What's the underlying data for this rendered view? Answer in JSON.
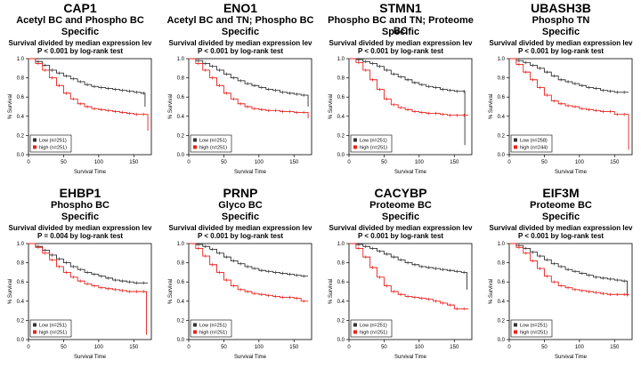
{
  "chart_data": [
    {
      "type": "line",
      "gene": "CAP1",
      "subtitle": [
        "Acetyl BC and Phospho BC",
        "Specific"
      ],
      "title": "Survival divided by median expression lev",
      "pvalue_text": "P < 0.001 by log-rank test",
      "xlabel": "Survival Time",
      "ylabel": "% Survival",
      "xlim": [
        0,
        175
      ],
      "ylim": [
        0,
        1
      ],
      "xticks": [
        "0",
        "50",
        "100",
        "150"
      ],
      "yticks": [
        "0.0",
        "0.2",
        "0.4",
        "0.6",
        "0.8",
        "1.0"
      ],
      "legend_position": "bottom-left",
      "series": [
        {
          "name": "Low (n=251)",
          "color": "#333333",
          "marker": "square",
          "x": [
            0,
            10,
            20,
            30,
            40,
            50,
            60,
            70,
            80,
            90,
            100,
            110,
            120,
            130,
            140,
            150,
            160,
            166
          ],
          "y": [
            1.0,
            0.97,
            0.93,
            0.88,
            0.85,
            0.82,
            0.79,
            0.76,
            0.73,
            0.71,
            0.7,
            0.69,
            0.68,
            0.67,
            0.66,
            0.65,
            0.64,
            0.5
          ]
        },
        {
          "name": "high (n=251)",
          "color": "#e8211e",
          "marker": "square",
          "x": [
            0,
            10,
            20,
            30,
            40,
            50,
            60,
            70,
            80,
            90,
            100,
            110,
            120,
            130,
            140,
            150,
            160,
            170
          ],
          "y": [
            1.0,
            0.95,
            0.88,
            0.8,
            0.72,
            0.64,
            0.58,
            0.53,
            0.5,
            0.48,
            0.47,
            0.46,
            0.45,
            0.44,
            0.43,
            0.42,
            0.42,
            0.25
          ]
        }
      ]
    },
    {
      "type": "line",
      "gene": "ENO1",
      "subtitle": [
        "Acetyl BC and TN; Phospho BC",
        "Specific"
      ],
      "title": "Survival divided by median expression lev",
      "pvalue_text": "P < 0.001 by log-rank test",
      "xlabel": "Survival Time",
      "ylabel": "% Survival",
      "xlim": [
        0,
        175
      ],
      "ylim": [
        0,
        1
      ],
      "xticks": [
        "0",
        "50",
        "100",
        "150"
      ],
      "yticks": [
        "0.0",
        "0.2",
        "0.4",
        "0.6",
        "0.8",
        "1.0"
      ],
      "legend_position": "bottom-left",
      "series": [
        {
          "name": "Low (n=251)",
          "color": "#333333",
          "marker": "square",
          "x": [
            0,
            10,
            20,
            30,
            40,
            50,
            60,
            70,
            80,
            90,
            100,
            110,
            120,
            130,
            140,
            150,
            160,
            170
          ],
          "y": [
            1.0,
            0.98,
            0.95,
            0.92,
            0.88,
            0.84,
            0.8,
            0.77,
            0.74,
            0.72,
            0.7,
            0.68,
            0.67,
            0.65,
            0.64,
            0.63,
            0.62,
            0.5
          ]
        },
        {
          "name": "high (n=251)",
          "color": "#e8211e",
          "marker": "square",
          "x": [
            0,
            10,
            20,
            30,
            40,
            50,
            60,
            70,
            80,
            90,
            100,
            110,
            120,
            130,
            140,
            150,
            160,
            170
          ],
          "y": [
            1.0,
            0.95,
            0.88,
            0.8,
            0.72,
            0.64,
            0.58,
            0.53,
            0.5,
            0.48,
            0.47,
            0.46,
            0.46,
            0.45,
            0.45,
            0.44,
            0.44,
            0.38
          ]
        }
      ]
    },
    {
      "type": "line",
      "gene": "STMN1",
      "subtitle": [
        "Phospho BC and TN; Proteome BC",
        "Specific"
      ],
      "title": "Survival divided by median expression lev",
      "pvalue_text": "P < 0.001 by log-rank test",
      "xlabel": "Survival Time",
      "ylabel": "% Survival",
      "xlim": [
        0,
        175
      ],
      "ylim": [
        0,
        1
      ],
      "xticks": [
        "0",
        "50",
        "100",
        "150"
      ],
      "yticks": [
        "0.0",
        "0.2",
        "0.4",
        "0.6",
        "0.8",
        "1.0"
      ],
      "legend_position": "bottom-left",
      "series": [
        {
          "name": "Low (n=251)",
          "color": "#333333",
          "marker": "square",
          "x": [
            0,
            10,
            20,
            30,
            40,
            50,
            60,
            70,
            80,
            90,
            100,
            110,
            120,
            130,
            140,
            150,
            160,
            165
          ],
          "y": [
            1.0,
            0.99,
            0.97,
            0.95,
            0.92,
            0.88,
            0.84,
            0.81,
            0.78,
            0.75,
            0.73,
            0.71,
            0.7,
            0.68,
            0.67,
            0.66,
            0.66,
            0.1
          ]
        },
        {
          "name": "high (n=251)",
          "color": "#e8211e",
          "marker": "square",
          "x": [
            0,
            10,
            20,
            30,
            40,
            50,
            60,
            70,
            80,
            90,
            100,
            110,
            120,
            130,
            140,
            150,
            160,
            170
          ],
          "y": [
            1.0,
            0.96,
            0.88,
            0.78,
            0.68,
            0.58,
            0.52,
            0.49,
            0.47,
            0.45,
            0.44,
            0.43,
            0.43,
            0.42,
            0.41,
            0.41,
            0.41,
            0.41
          ]
        }
      ]
    },
    {
      "type": "line",
      "gene": "UBASH3B",
      "subtitle": [
        "Phospho TN",
        "Specific"
      ],
      "title": "Survival divided by median expression lev",
      "pvalue_text": "P < 0.001 by log-rank test",
      "xlabel": "Survival Time",
      "ylabel": "% Survival",
      "xlim": [
        0,
        175
      ],
      "ylim": [
        0,
        1
      ],
      "xticks": [
        "0",
        "50",
        "100",
        "150"
      ],
      "yticks": [
        "0.0",
        "0.2",
        "0.4",
        "0.6",
        "0.8",
        "1.0"
      ],
      "legend_position": "bottom-left",
      "series": [
        {
          "name": "Low (n=258)",
          "color": "#333333",
          "marker": "square",
          "x": [
            0,
            10,
            20,
            30,
            40,
            50,
            60,
            70,
            80,
            90,
            100,
            110,
            120,
            130,
            140,
            150,
            160,
            170
          ],
          "y": [
            1.0,
            0.98,
            0.96,
            0.93,
            0.9,
            0.86,
            0.82,
            0.78,
            0.76,
            0.74,
            0.72,
            0.7,
            0.69,
            0.67,
            0.66,
            0.65,
            0.65,
            0.65
          ]
        },
        {
          "name": "high (n=244)",
          "color": "#e8211e",
          "marker": "square",
          "x": [
            0,
            10,
            20,
            30,
            40,
            50,
            60,
            70,
            80,
            90,
            100,
            110,
            120,
            130,
            140,
            150,
            160,
            170
          ],
          "y": [
            1.0,
            0.94,
            0.86,
            0.78,
            0.7,
            0.62,
            0.56,
            0.53,
            0.51,
            0.5,
            0.48,
            0.47,
            0.46,
            0.45,
            0.45,
            0.42,
            0.42,
            0.05
          ]
        }
      ]
    },
    {
      "type": "line",
      "gene": "EHBP1",
      "subtitle": [
        "Phospho BC",
        "Specific"
      ],
      "title": "Survival divided by median expression lev",
      "pvalue_text": "P = 0.004 by log-rank test",
      "xlabel": "Survival Time",
      "ylabel": "% Survival",
      "xlim": [
        0,
        175
      ],
      "ylim": [
        0,
        1
      ],
      "xticks": [
        "0",
        "50",
        "100",
        "150"
      ],
      "yticks": [
        "0.0",
        "0.2",
        "0.4",
        "0.6",
        "0.8",
        "1.0"
      ],
      "legend_position": "bottom-left",
      "series": [
        {
          "name": "Low (n=251)",
          "color": "#333333",
          "marker": "square",
          "x": [
            0,
            10,
            20,
            30,
            40,
            50,
            60,
            70,
            80,
            90,
            100,
            110,
            120,
            130,
            140,
            150,
            160,
            170
          ],
          "y": [
            1.0,
            0.97,
            0.93,
            0.88,
            0.84,
            0.8,
            0.76,
            0.73,
            0.7,
            0.68,
            0.66,
            0.64,
            0.62,
            0.61,
            0.6,
            0.59,
            0.59,
            0.59
          ]
        },
        {
          "name": "high (n=251)",
          "color": "#e8211e",
          "marker": "square",
          "x": [
            0,
            10,
            20,
            30,
            40,
            50,
            60,
            70,
            80,
            90,
            100,
            110,
            120,
            130,
            140,
            150,
            160,
            168
          ],
          "y": [
            1.0,
            0.96,
            0.9,
            0.83,
            0.76,
            0.7,
            0.65,
            0.61,
            0.58,
            0.56,
            0.54,
            0.53,
            0.52,
            0.51,
            0.5,
            0.5,
            0.5,
            0.05
          ]
        }
      ]
    },
    {
      "type": "line",
      "gene": "PRNP",
      "subtitle": [
        "Glyco BC",
        "Specific"
      ],
      "title": "Survival divided by median expression lev",
      "pvalue_text": "P < 0.001 by log-rank test",
      "xlabel": "Survival Time",
      "ylabel": "% Survival",
      "xlim": [
        0,
        175
      ],
      "ylim": [
        0,
        1
      ],
      "xticks": [
        "0",
        "50",
        "100",
        "150"
      ],
      "yticks": [
        "0.0",
        "0.2",
        "0.4",
        "0.6",
        "0.8",
        "1.0"
      ],
      "legend_position": "bottom-left",
      "series": [
        {
          "name": "Low (n=251)",
          "color": "#333333",
          "marker": "square",
          "x": [
            0,
            10,
            20,
            30,
            40,
            50,
            60,
            70,
            80,
            90,
            100,
            110,
            120,
            130,
            140,
            150,
            160,
            170
          ],
          "y": [
            1.0,
            0.99,
            0.97,
            0.94,
            0.9,
            0.86,
            0.82,
            0.79,
            0.76,
            0.74,
            0.72,
            0.71,
            0.7,
            0.69,
            0.68,
            0.67,
            0.66,
            0.66
          ]
        },
        {
          "name": "high (n=251)",
          "color": "#e8211e",
          "marker": "square",
          "x": [
            0,
            10,
            20,
            30,
            40,
            50,
            60,
            70,
            80,
            90,
            100,
            110,
            120,
            130,
            140,
            150,
            160,
            170
          ],
          "y": [
            1.0,
            0.95,
            0.87,
            0.78,
            0.7,
            0.62,
            0.56,
            0.52,
            0.5,
            0.48,
            0.47,
            0.46,
            0.45,
            0.44,
            0.44,
            0.43,
            0.4,
            0.4
          ]
        }
      ]
    },
    {
      "type": "line",
      "gene": "CACYBP",
      "subtitle": [
        "Proteome BC",
        "Specific"
      ],
      "title": "Survival divided by median expression lev",
      "pvalue_text": "P < 0.001 by log-rank test",
      "xlabel": "Survival Time",
      "ylabel": "% Survival",
      "xlim": [
        0,
        175
      ],
      "ylim": [
        0,
        1
      ],
      "xticks": [
        "0",
        "50",
        "100",
        "150"
      ],
      "yticks": [
        "0.0",
        "0.2",
        "0.4",
        "0.6",
        "0.8",
        "1.0"
      ],
      "legend_position": "bottom-left",
      "series": [
        {
          "name": "Low (n=251)",
          "color": "#333333",
          "marker": "square",
          "x": [
            0,
            10,
            20,
            30,
            40,
            50,
            60,
            70,
            80,
            90,
            100,
            110,
            120,
            130,
            140,
            150,
            160,
            168
          ],
          "y": [
            1.0,
            0.99,
            0.97,
            0.95,
            0.92,
            0.89,
            0.86,
            0.83,
            0.8,
            0.78,
            0.76,
            0.75,
            0.74,
            0.73,
            0.72,
            0.71,
            0.7,
            0.52
          ]
        },
        {
          "name": "high (n=251)",
          "color": "#e8211e",
          "marker": "square",
          "x": [
            0,
            10,
            20,
            30,
            40,
            50,
            60,
            70,
            80,
            90,
            100,
            110,
            120,
            130,
            140,
            150,
            160,
            170
          ],
          "y": [
            1.0,
            0.95,
            0.86,
            0.75,
            0.65,
            0.56,
            0.5,
            0.47,
            0.45,
            0.44,
            0.43,
            0.42,
            0.4,
            0.38,
            0.36,
            0.32,
            0.32,
            0.32
          ]
        }
      ]
    },
    {
      "type": "line",
      "gene": "EIF3M",
      "subtitle": [
        "Proteome BC",
        "Specific"
      ],
      "title": "Survival divided by median expression lev",
      "pvalue_text": "P < 0.001 by log-rank test",
      "xlabel": "Survival Time",
      "ylabel": "% Survival",
      "xlim": [
        0,
        175
      ],
      "ylim": [
        0,
        1
      ],
      "xticks": [
        "0",
        "50",
        "100",
        "150"
      ],
      "yticks": [
        "0.0",
        "0.2",
        "0.4",
        "0.6",
        "0.8",
        "1.0"
      ],
      "legend_position": "bottom-left",
      "series": [
        {
          "name": "Low (n=251)",
          "color": "#333333",
          "marker": "square",
          "x": [
            0,
            10,
            20,
            30,
            40,
            50,
            60,
            70,
            80,
            90,
            100,
            110,
            120,
            130,
            140,
            150,
            160,
            168
          ],
          "y": [
            1.0,
            0.98,
            0.95,
            0.91,
            0.87,
            0.83,
            0.79,
            0.76,
            0.73,
            0.71,
            0.69,
            0.67,
            0.65,
            0.64,
            0.63,
            0.62,
            0.61,
            0.45
          ]
        },
        {
          "name": "high (n=251)",
          "color": "#e8211e",
          "marker": "square",
          "x": [
            0,
            10,
            20,
            30,
            40,
            50,
            60,
            70,
            80,
            90,
            100,
            110,
            120,
            130,
            140,
            150,
            160,
            170
          ],
          "y": [
            1.0,
            0.96,
            0.9,
            0.82,
            0.74,
            0.66,
            0.6,
            0.56,
            0.54,
            0.52,
            0.51,
            0.5,
            0.49,
            0.48,
            0.47,
            0.47,
            0.47,
            0.46
          ]
        }
      ]
    }
  ]
}
